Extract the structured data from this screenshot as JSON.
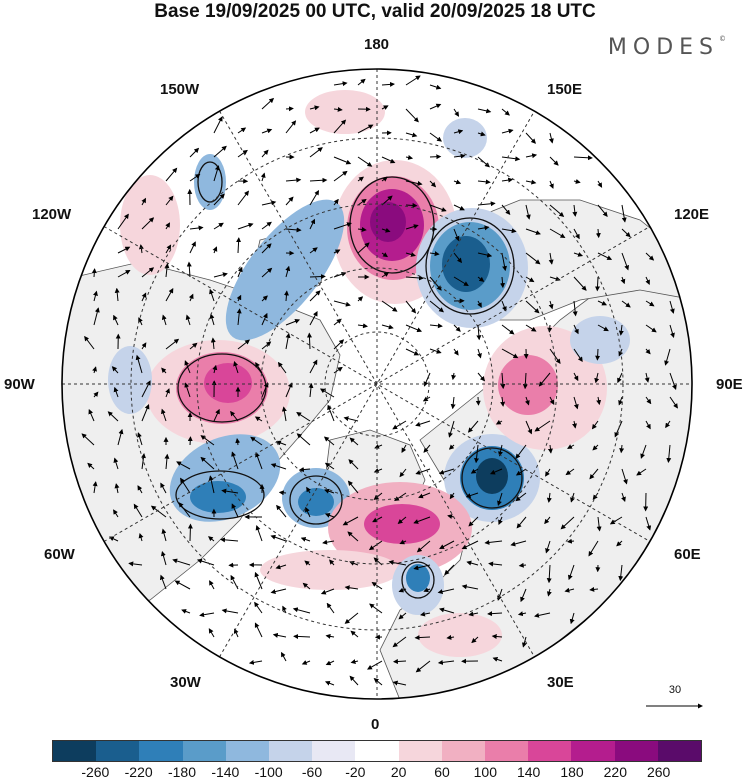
{
  "title": "Base 19/09/2025 00 UTC, valid 20/09/2025 18 UTC",
  "brand": {
    "name": "MODES",
    "mark": "©"
  },
  "map": {
    "projection": "north-polar-stereographic",
    "longitude_labels": {
      "top": "180",
      "bottom": "0",
      "left": "90W",
      "right": "90E",
      "upper_left_1": "150W",
      "upper_left_2": "120W",
      "upper_right_1": "150E",
      "upper_right_2": "120E",
      "lower_left_1": "60W",
      "lower_left_2": "30W",
      "lower_right_1": "60E",
      "lower_right_2": "30E"
    },
    "colors": {
      "land": "#efefef",
      "ocean": "#ffffff",
      "coast": "#555555",
      "grid": "#333333"
    },
    "anomaly_centers": [
      {
        "name": "positive-core-north",
        "sign": "positive",
        "value": 240
      },
      {
        "name": "negative-core-northeast",
        "sign": "negative",
        "value": -220
      },
      {
        "name": "positive-core-west",
        "sign": "positive",
        "value": 200
      },
      {
        "name": "negative-core-southwest",
        "sign": "negative",
        "value": -160
      },
      {
        "name": "negative-core-south",
        "sign": "negative",
        "value": -140
      },
      {
        "name": "negative-core-east",
        "sign": "negative",
        "value": -260
      },
      {
        "name": "positive-core-east",
        "sign": "positive",
        "value": 140
      },
      {
        "name": "positive-core-south",
        "sign": "positive",
        "value": 160
      },
      {
        "name": "negative-core-scandinavia",
        "sign": "negative",
        "value": -140
      },
      {
        "name": "negative-core-pacific",
        "sign": "negative",
        "value": -120
      },
      {
        "name": "positive-core-farwest",
        "sign": "positive",
        "value": 80
      }
    ]
  },
  "colorbar": {
    "ticks": [
      "-260",
      "-220",
      "-180",
      "-140",
      "-100",
      "-60",
      "-20",
      "20",
      "60",
      "100",
      "140",
      "180",
      "220",
      "260"
    ],
    "colors": [
      "#0d3d5e",
      "#1a5e8e",
      "#2f7fb8",
      "#5a9cc9",
      "#8fb8de",
      "#c5d3ea",
      "#e8e8f4",
      "#ffffff",
      "#f6d6dc",
      "#f1b0c2",
      "#ea7eaa",
      "#d94699",
      "#b41d8e",
      "#8a0b7e",
      "#5a0b6a"
    ]
  },
  "wind_scale": {
    "value": "30"
  }
}
